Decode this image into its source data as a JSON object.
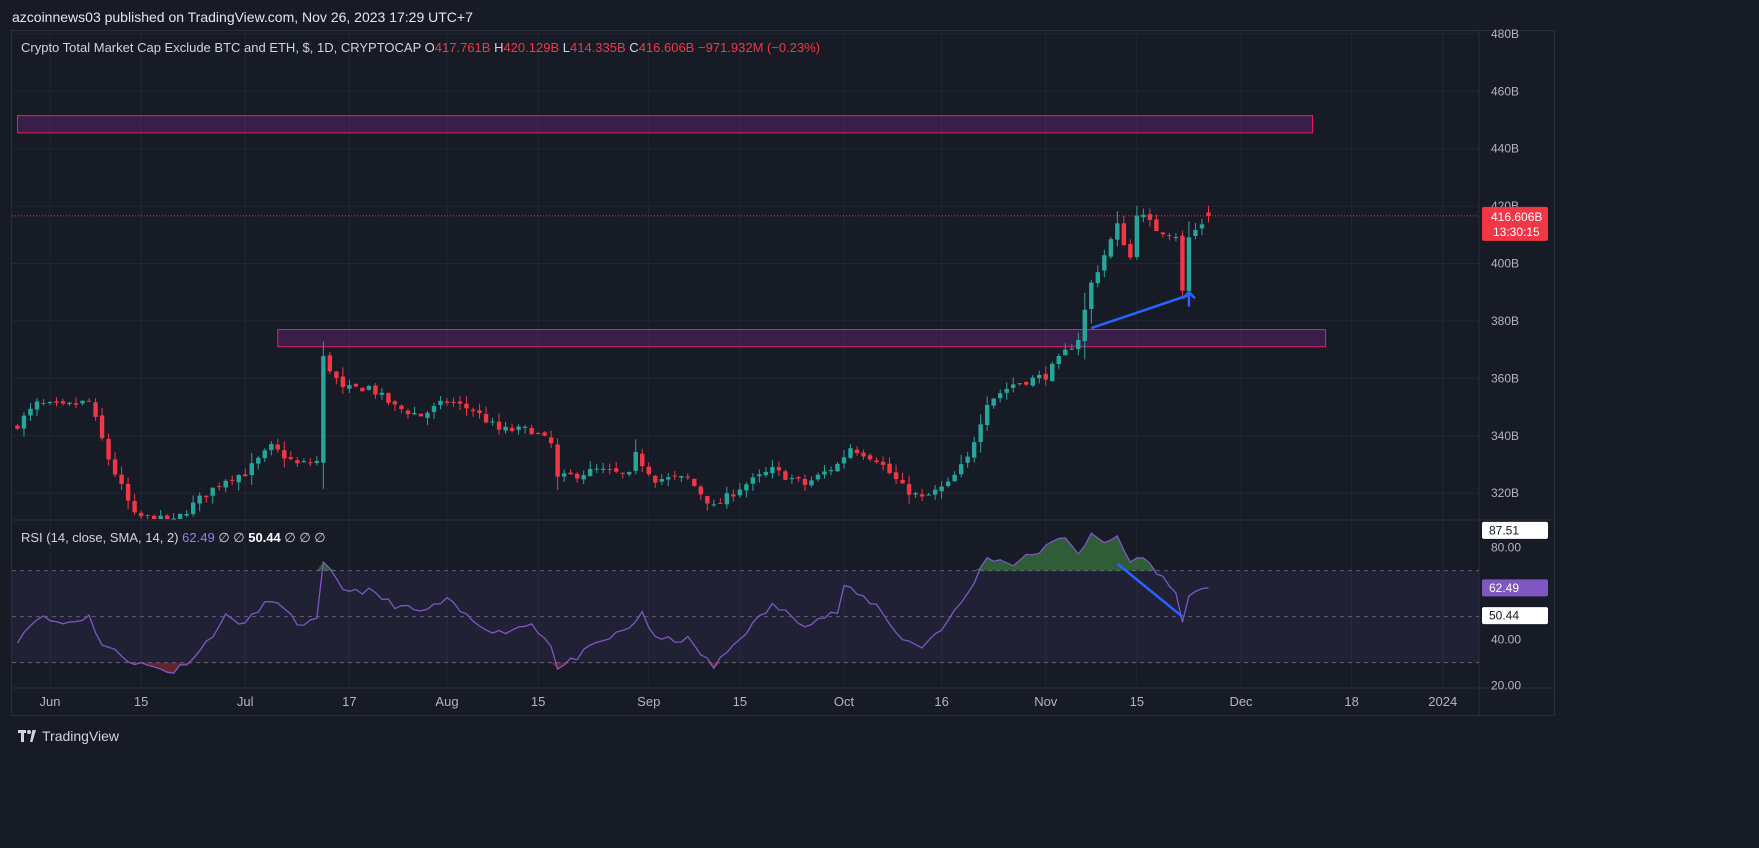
{
  "header": {
    "publish_line": "azcoinnews03 published on TradingView.com, Nov 26, 2023 17:29 UTC+7"
  },
  "legend": {
    "symbol": "Crypto Total Market Cap Exclude BTC and ETH, $, 1D, CRYPTOCAP",
    "o_label": "O",
    "o_value": "417.761B",
    "h_label": "H",
    "h_value": "420.129B",
    "l_label": "L",
    "l_value": "414.335B",
    "c_label": "C",
    "c_value": "416.606B",
    "change": "−971.932M (−0.23%)"
  },
  "rsi_legend": {
    "title": "RSI (14, close, SMA, 14, 2)",
    "rsi_value": "62.49",
    "na1": "∅",
    "na2": "∅",
    "sma_value": "50.44",
    "na3": "∅",
    "na4": "∅",
    "na5": "∅"
  },
  "price_badge": {
    "price": "416.606B",
    "countdown": "13:30:15"
  },
  "footer": {
    "brand": "TradingView"
  },
  "colors": {
    "up": "#26a69a",
    "down": "#f23645",
    "zone_border": "#e91e63",
    "zone_fill": "rgba(156,39,176,0.25)",
    "annotation": "#2962ff",
    "rsi_line": "#7e57c2",
    "rsi_band": "rgba(126,87,194,0.1)"
  },
  "chart_data": [
    {
      "type": "candlestick",
      "title": "Crypto Total Market Cap Exclude BTC and ETH, $, 1D, CRYPTOCAP",
      "y_ticks": [
        "480B",
        "460B",
        "440B",
        "420B",
        "400B",
        "380B",
        "360B",
        "340B",
        "320B"
      ],
      "ylim": [
        311,
        481
      ],
      "x_ticks": [
        "Jun",
        "15",
        "Jul",
        "17",
        "Aug",
        "15",
        "Sep",
        "15",
        "Oct",
        "16",
        "Nov",
        "15",
        "Dec",
        "18",
        "2024"
      ],
      "x_tick_dates": [
        "2023-06-01",
        "2023-06-15",
        "2023-07-01",
        "2023-07-17",
        "2023-08-01",
        "2023-08-15",
        "2023-09-01",
        "2023-09-15",
        "2023-10-01",
        "2023-10-16",
        "2023-11-01",
        "2023-11-15",
        "2023-12-01",
        "2023-12-18",
        "2024-01-01"
      ],
      "date_range": [
        "2023-05-27",
        "2023-11-26"
      ],
      "close_anchors": [
        [
          "2023-05-27",
          344
        ],
        [
          "2023-05-30",
          351
        ],
        [
          "2023-06-03",
          350
        ],
        [
          "2023-06-07",
          352
        ],
        [
          "2023-06-10",
          332
        ],
        [
          "2023-06-14",
          312
        ],
        [
          "2023-06-20",
          310
        ],
        [
          "2023-06-24",
          318
        ],
        [
          "2023-06-28",
          325
        ],
        [
          "2023-07-01",
          327
        ],
        [
          "2023-07-05",
          336
        ],
        [
          "2023-07-09",
          330
        ],
        [
          "2023-07-12",
          331
        ],
        [
          "2023-07-13",
          367
        ],
        [
          "2023-07-16",
          356
        ],
        [
          "2023-07-20",
          357
        ],
        [
          "2023-07-24",
          350
        ],
        [
          "2023-07-28",
          347
        ],
        [
          "2023-08-01",
          352
        ],
        [
          "2023-08-05",
          349
        ],
        [
          "2023-08-09",
          342
        ],
        [
          "2023-08-14",
          342
        ],
        [
          "2023-08-17",
          337
        ],
        [
          "2023-08-18",
          325
        ],
        [
          "2023-08-24",
          328
        ],
        [
          "2023-08-29",
          326
        ],
        [
          "2023-08-30",
          333
        ],
        [
          "2023-09-02",
          325
        ],
        [
          "2023-09-07",
          325
        ],
        [
          "2023-09-11",
          315
        ],
        [
          "2023-09-15",
          322
        ],
        [
          "2023-09-20",
          328
        ],
        [
          "2023-09-25",
          323
        ],
        [
          "2023-09-30",
          330
        ],
        [
          "2023-10-02",
          336
        ],
        [
          "2023-10-06",
          332
        ],
        [
          "2023-10-10",
          322
        ],
        [
          "2023-10-13",
          318
        ],
        [
          "2023-10-17",
          323
        ],
        [
          "2023-10-20",
          332
        ],
        [
          "2023-10-23",
          352
        ],
        [
          "2023-10-27",
          358
        ],
        [
          "2023-11-01",
          361
        ],
        [
          "2023-11-04",
          369
        ],
        [
          "2023-11-06",
          374
        ],
        [
          "2023-11-08",
          393
        ],
        [
          "2023-11-10",
          403
        ],
        [
          "2023-11-12",
          413
        ],
        [
          "2023-11-14",
          402
        ],
        [
          "2023-11-15",
          418
        ],
        [
          "2023-11-18",
          412
        ],
        [
          "2023-11-21",
          410
        ],
        [
          "2023-11-22",
          390
        ],
        [
          "2023-11-23",
          409
        ],
        [
          "2023-11-26",
          416.606
        ]
      ],
      "zones": [
        {
          "from": "2023-05-27",
          "to": "2023-12-12",
          "low": 445.5,
          "high": 451.5
        },
        {
          "from": "2023-07-06",
          "to": "2023-12-14",
          "low": 371,
          "high": 377
        }
      ],
      "annotation_line": {
        "from": [
          "2023-11-08",
          377.5
        ],
        "to": [
          "2023-11-23",
          389
        ]
      },
      "annotation_arrow": {
        "date": "2023-11-23",
        "from": 385,
        "to": 390
      },
      "last": {
        "open": 417.761,
        "high": 420.129,
        "low": 414.335,
        "close": 416.606
      }
    },
    {
      "type": "line",
      "title": "RSI (14, close, SMA, 14, 2)",
      "y_ticks": [
        "80.00",
        "40.00",
        "20.00"
      ],
      "ylim": [
        19,
        92
      ],
      "levels": [
        70,
        50,
        30
      ],
      "rsi_current": 62.49,
      "sma_current": 50.44,
      "rsi_anchors": [
        [
          "2023-05-27",
          40
        ],
        [
          "2023-05-30",
          50
        ],
        [
          "2023-06-03",
          47
        ],
        [
          "2023-06-07",
          50
        ],
        [
          "2023-06-09",
          38
        ],
        [
          "2023-06-14",
          30
        ],
        [
          "2023-06-20",
          26
        ],
        [
          "2023-06-24",
          35
        ],
        [
          "2023-06-28",
          50
        ],
        [
          "2023-07-01",
          47
        ],
        [
          "2023-07-05",
          58
        ],
        [
          "2023-07-09",
          47
        ],
        [
          "2023-07-12",
          48
        ],
        [
          "2023-07-13",
          73
        ],
        [
          "2023-07-16",
          62
        ],
        [
          "2023-07-20",
          61
        ],
        [
          "2023-07-24",
          55
        ],
        [
          "2023-07-28",
          52
        ],
        [
          "2023-08-01",
          57
        ],
        [
          "2023-08-05",
          48
        ],
        [
          "2023-08-09",
          43
        ],
        [
          "2023-08-14",
          47
        ],
        [
          "2023-08-17",
          38
        ],
        [
          "2023-08-18",
          27
        ],
        [
          "2023-08-24",
          38
        ],
        [
          "2023-08-29",
          45
        ],
        [
          "2023-08-31",
          52
        ],
        [
          "2023-09-02",
          40
        ],
        [
          "2023-09-07",
          40
        ],
        [
          "2023-09-11",
          28
        ],
        [
          "2023-09-15",
          41
        ],
        [
          "2023-09-20",
          55
        ],
        [
          "2023-09-25",
          47
        ],
        [
          "2023-09-30",
          52
        ],
        [
          "2023-10-01",
          63
        ],
        [
          "2023-10-06",
          55
        ],
        [
          "2023-10-10",
          40
        ],
        [
          "2023-10-13",
          37
        ],
        [
          "2023-10-17",
          48
        ],
        [
          "2023-10-20",
          60
        ],
        [
          "2023-10-23",
          76
        ],
        [
          "2023-10-27",
          73
        ],
        [
          "2023-11-01",
          80
        ],
        [
          "2023-11-04",
          85
        ],
        [
          "2023-11-06",
          78
        ],
        [
          "2023-11-08",
          85
        ],
        [
          "2023-11-10",
          82
        ],
        [
          "2023-11-12",
          85
        ],
        [
          "2023-11-14",
          73
        ],
        [
          "2023-11-15",
          77
        ],
        [
          "2023-11-18",
          70
        ],
        [
          "2023-11-21",
          60
        ],
        [
          "2023-11-22",
          49
        ],
        [
          "2023-11-23",
          58
        ],
        [
          "2023-11-26",
          62.49
        ]
      ],
      "divergence_line": {
        "from": [
          "2023-11-12",
          73
        ],
        "to": [
          "2023-11-22",
          50
        ]
      }
    }
  ]
}
